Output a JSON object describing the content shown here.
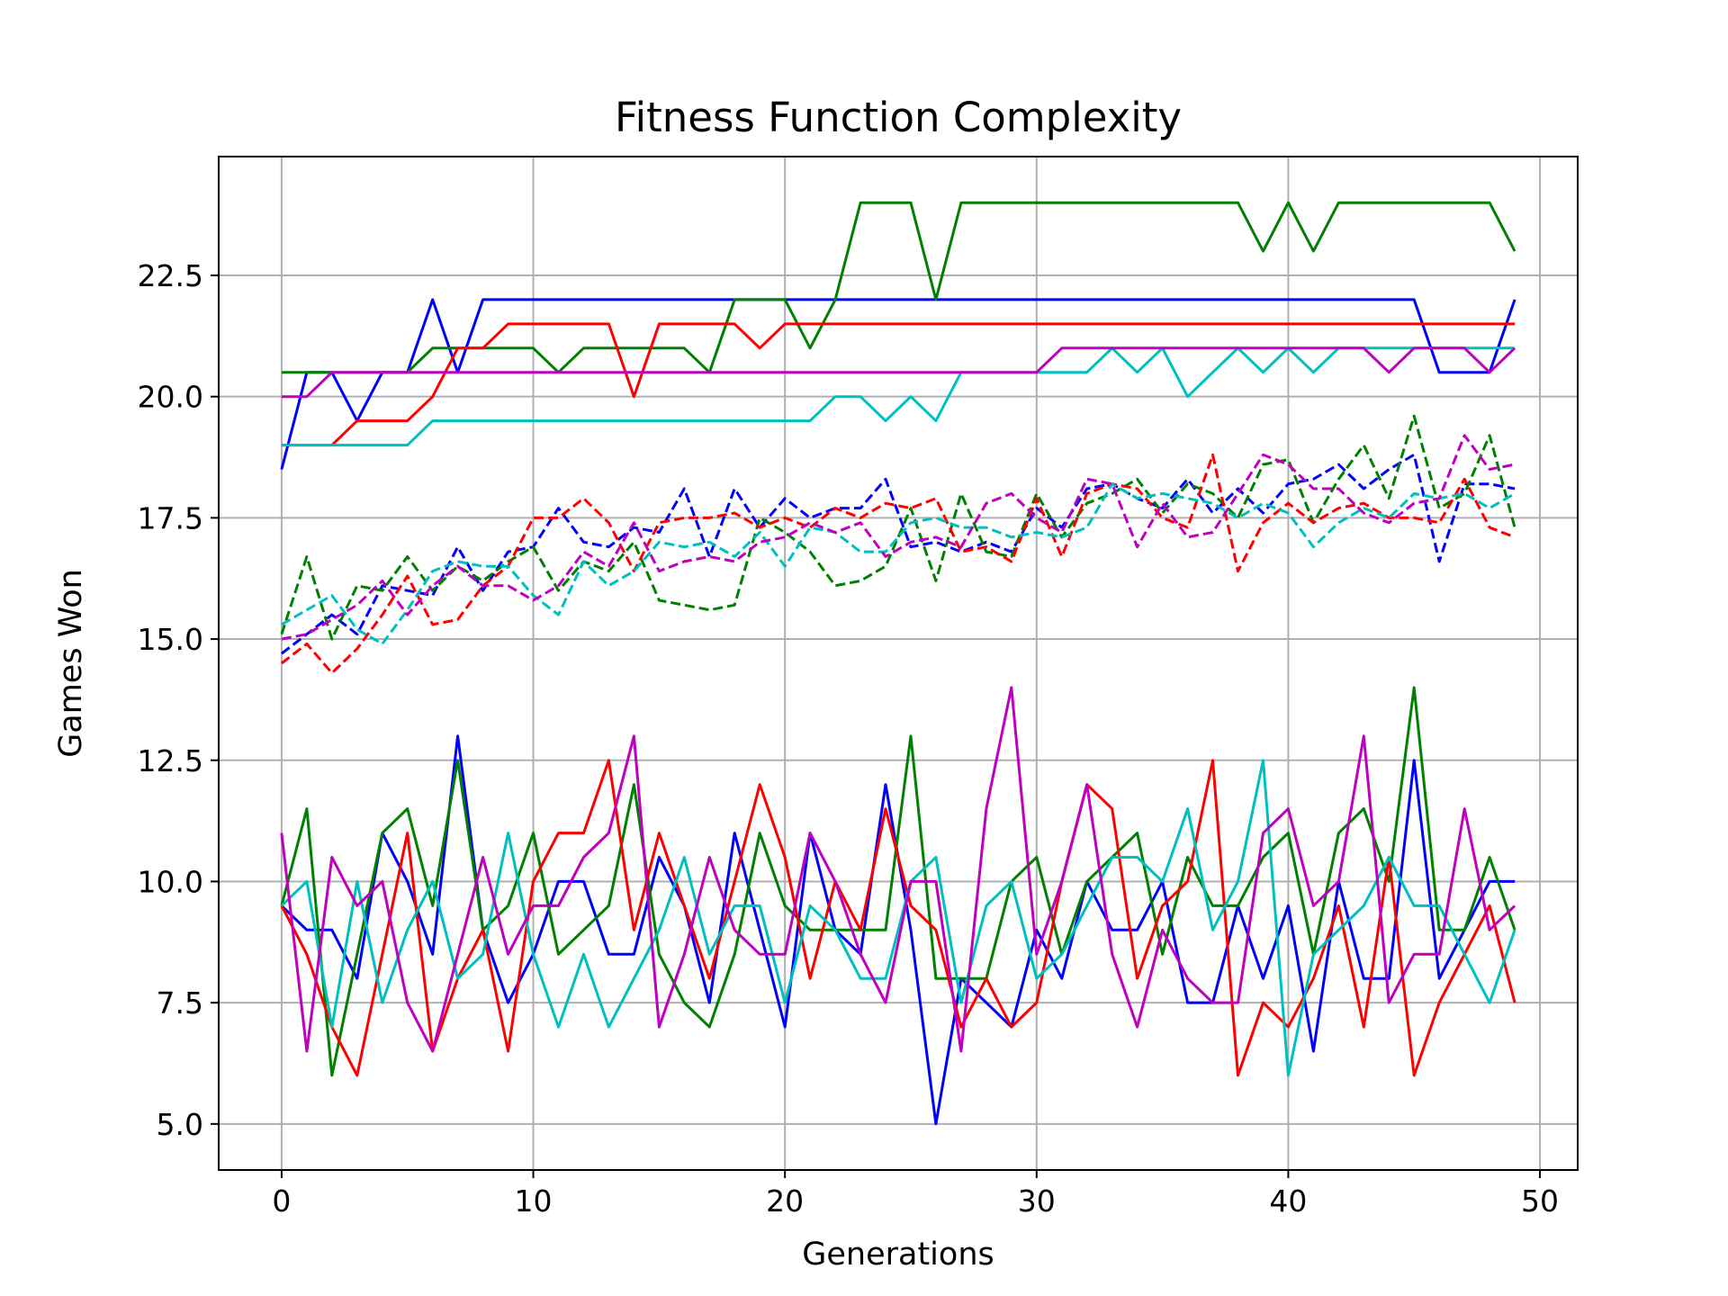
{
  "chart_data": {
    "type": "line",
    "title": "Fitness Function Complexity",
    "xlabel": "Generations",
    "ylabel": "Games Won",
    "xlim": [
      -2.5,
      51.5
    ],
    "ylim": [
      4.05,
      24.95
    ],
    "xticks": [
      0,
      10,
      20,
      30,
      40,
      50
    ],
    "xtick_labels": [
      "0",
      "10",
      "20",
      "30",
      "40",
      "50"
    ],
    "yticks": [
      5.0,
      7.5,
      10.0,
      12.5,
      15.0,
      17.5,
      20.0,
      22.5
    ],
    "ytick_labels": [
      "5.0",
      "7.5",
      "10.0",
      "12.5",
      "15.0",
      "17.5",
      "20.0",
      "22.5"
    ],
    "grid": true,
    "legend": "none",
    "x": [
      0,
      1,
      2,
      3,
      4,
      5,
      6,
      7,
      8,
      9,
      10,
      11,
      12,
      13,
      14,
      15,
      16,
      17,
      18,
      19,
      20,
      21,
      22,
      23,
      24,
      25,
      26,
      27,
      28,
      29,
      30,
      31,
      32,
      33,
      34,
      35,
      36,
      37,
      38,
      39,
      40,
      41,
      42,
      43,
      44,
      45,
      46,
      47,
      48,
      49
    ],
    "series": [
      {
        "color": "#0000ff",
        "style": "solid",
        "values": [
          18.5,
          20.5,
          20.5,
          19.5,
          20.5,
          20.5,
          22,
          20.5,
          22,
          22,
          22,
          22,
          22,
          22,
          22,
          22,
          22,
          22,
          22,
          22,
          22,
          22,
          22,
          22,
          22,
          22,
          22,
          22,
          22,
          22,
          22,
          22,
          22,
          22,
          22,
          22,
          22,
          22,
          22,
          22,
          22,
          22,
          22,
          22,
          22,
          22,
          20.5,
          20.5,
          20.5,
          22
        ]
      },
      {
        "color": "#008000",
        "style": "solid",
        "values": [
          20.5,
          20.5,
          20.5,
          20.5,
          20.5,
          20.5,
          21,
          21,
          21,
          21,
          21,
          20.5,
          21,
          21,
          21,
          21,
          21,
          20.5,
          22,
          22,
          22,
          21,
          22,
          24,
          24,
          24,
          22,
          24,
          24,
          24,
          24,
          24,
          24,
          24,
          24,
          24,
          24,
          24,
          24,
          23,
          24,
          23,
          24,
          24,
          24,
          24,
          24,
          24,
          24,
          23
        ]
      },
      {
        "color": "#ff0000",
        "style": "solid",
        "values": [
          19,
          19,
          19,
          19.5,
          19.5,
          19.5,
          20,
          21,
          21,
          21.5,
          21.5,
          21.5,
          21.5,
          21.5,
          20,
          21.5,
          21.5,
          21.5,
          21.5,
          21,
          21.5,
          21.5,
          21.5,
          21.5,
          21.5,
          21.5,
          21.5,
          21.5,
          21.5,
          21.5,
          21.5,
          21.5,
          21.5,
          21.5,
          21.5,
          21.5,
          21.5,
          21.5,
          21.5,
          21.5,
          21.5,
          21.5,
          21.5,
          21.5,
          21.5,
          21.5,
          21.5,
          21.5,
          21.5,
          21.5
        ]
      },
      {
        "color": "#00bfbf",
        "style": "solid",
        "values": [
          19,
          19,
          19,
          19,
          19,
          19,
          19.5,
          19.5,
          19.5,
          19.5,
          19.5,
          19.5,
          19.5,
          19.5,
          19.5,
          19.5,
          19.5,
          19.5,
          19.5,
          19.5,
          19.5,
          19.5,
          20,
          20,
          19.5,
          20,
          19.5,
          20.5,
          20.5,
          20.5,
          20.5,
          20.5,
          20.5,
          21,
          20.5,
          21,
          20,
          20.5,
          21,
          20.5,
          21,
          20.5,
          21,
          21,
          21,
          21,
          21,
          21,
          21,
          21
        ]
      },
      {
        "color": "#bf00bf",
        "style": "solid",
        "values": [
          20,
          20,
          20.5,
          20.5,
          20.5,
          20.5,
          20.5,
          20.5,
          20.5,
          20.5,
          20.5,
          20.5,
          20.5,
          20.5,
          20.5,
          20.5,
          20.5,
          20.5,
          20.5,
          20.5,
          20.5,
          20.5,
          20.5,
          20.5,
          20.5,
          20.5,
          20.5,
          20.5,
          20.5,
          20.5,
          20.5,
          21,
          21,
          21,
          21,
          21,
          21,
          21,
          21,
          21,
          21,
          21,
          21,
          21,
          20.5,
          21,
          21,
          21,
          20.5,
          21
        ]
      },
      {
        "color": "#0000ff",
        "style": "dashed",
        "values": [
          14.7,
          15.1,
          15.5,
          15.1,
          16.1,
          16.0,
          15.9,
          16.9,
          16.0,
          16.8,
          16.9,
          17.7,
          17.0,
          16.9,
          17.3,
          17.2,
          18.1,
          16.7,
          18.1,
          17.3,
          17.9,
          17.5,
          17.7,
          17.7,
          18.3,
          16.9,
          17.0,
          16.8,
          17.0,
          16.8,
          17.7,
          17.3,
          18.1,
          18.2,
          17.9,
          17.7,
          18.3,
          17.6,
          18.1,
          17.6,
          18.2,
          18.3,
          18.6,
          18.1,
          18.5,
          18.8,
          16.6,
          18.2,
          18.2,
          18.1
        ]
      },
      {
        "color": "#008000",
        "style": "dashed",
        "values": [
          15.1,
          16.7,
          15.0,
          16.1,
          16.0,
          16.7,
          16.0,
          16.5,
          16.2,
          16.6,
          16.9,
          16.0,
          16.6,
          16.4,
          17.0,
          15.8,
          15.7,
          15.6,
          15.7,
          17.5,
          17.2,
          16.8,
          16.1,
          16.2,
          16.5,
          17.7,
          16.2,
          18.0,
          16.8,
          16.7,
          18.0,
          17.1,
          17.8,
          18.0,
          18.3,
          17.6,
          18.2,
          18.0,
          17.5,
          18.6,
          18.7,
          17.4,
          18.3,
          19.0,
          17.9,
          19.6,
          17.7,
          18.0,
          19.2,
          17.3
        ]
      },
      {
        "color": "#ff0000",
        "style": "dashed",
        "values": [
          14.5,
          14.9,
          14.3,
          14.8,
          15.5,
          16.3,
          15.3,
          15.4,
          16.1,
          16.5,
          17.5,
          17.5,
          17.9,
          17.4,
          16.4,
          17.4,
          17.5,
          17.5,
          17.6,
          17.3,
          17.5,
          17.3,
          17.7,
          17.5,
          17.8,
          17.7,
          17.9,
          16.8,
          16.9,
          16.6,
          17.9,
          16.7,
          18.0,
          18.2,
          18.1,
          17.5,
          17.3,
          18.8,
          16.4,
          17.4,
          17.8,
          17.4,
          17.7,
          17.8,
          17.5,
          17.5,
          17.4,
          18.3,
          17.3,
          17.1
        ]
      },
      {
        "color": "#00bfbf",
        "style": "dashed",
        "values": [
          15.3,
          15.6,
          15.9,
          15.2,
          14.9,
          15.6,
          16.4,
          16.6,
          16.5,
          16.5,
          15.9,
          15.5,
          16.6,
          16.1,
          16.4,
          17.0,
          16.9,
          17.0,
          16.7,
          17.2,
          16.5,
          17.3,
          17.2,
          16.8,
          16.8,
          17.4,
          17.5,
          17.3,
          17.3,
          17.1,
          17.2,
          17.1,
          17.3,
          18.2,
          17.9,
          18.0,
          17.9,
          17.8,
          17.5,
          17.8,
          17.6,
          16.9,
          17.4,
          17.7,
          17.5,
          18.0,
          17.9,
          18.0,
          17.7,
          18.0
        ]
      },
      {
        "color": "#bf00bf",
        "style": "dashed",
        "values": [
          15.0,
          15.1,
          15.4,
          15.7,
          16.2,
          15.5,
          16.1,
          16.5,
          16.1,
          16.1,
          15.8,
          16.1,
          16.8,
          16.5,
          17.4,
          16.4,
          16.6,
          16.7,
          16.6,
          17.0,
          17.1,
          17.4,
          17.2,
          17.4,
          16.7,
          17.0,
          17.1,
          16.9,
          17.8,
          18.0,
          17.5,
          17.2,
          18.3,
          18.2,
          16.9,
          17.8,
          17.1,
          17.2,
          18.0,
          18.8,
          18.6,
          18.1,
          18.1,
          17.6,
          17.4,
          17.8,
          17.9,
          19.2,
          18.5,
          18.6
        ]
      },
      {
        "color": "#0000ff",
        "style": "solid",
        "values": [
          9.5,
          9,
          9,
          8,
          11,
          10,
          8.5,
          13,
          9,
          7.5,
          8.5,
          10,
          10,
          8.5,
          8.5,
          10.5,
          9.5,
          7.5,
          11,
          9,
          7,
          11,
          9,
          8.5,
          12,
          9,
          5,
          8,
          7.5,
          7,
          9,
          8,
          10,
          9,
          9,
          10,
          7.5,
          7.5,
          9.5,
          8,
          9.5,
          6.5,
          10,
          8,
          8,
          12.5,
          8,
          9,
          10,
          10
        ]
      },
      {
        "color": "#008000",
        "style": "solid",
        "values": [
          9.5,
          11.5,
          6,
          8.5,
          11,
          11.5,
          9.5,
          12.5,
          9,
          9.5,
          11,
          8.5,
          9,
          9.5,
          12,
          8.5,
          7.5,
          7,
          8.5,
          11,
          9.5,
          9,
          9,
          9,
          9,
          13,
          8,
          8,
          8,
          10,
          10.5,
          8.5,
          10,
          10.5,
          11,
          8.5,
          10.5,
          9.5,
          9.5,
          10.5,
          11,
          8.5,
          11,
          11.5,
          10,
          14,
          9,
          9,
          10.5,
          9
        ]
      },
      {
        "color": "#ff0000",
        "style": "solid",
        "values": [
          9.5,
          8.5,
          7,
          6,
          8.5,
          11,
          6.5,
          8,
          9,
          6.5,
          10,
          11,
          11,
          12.5,
          9,
          11,
          9.5,
          8,
          10,
          12,
          10.5,
          8,
          10,
          9,
          11.5,
          9.5,
          9,
          7,
          8,
          7,
          7.5,
          10,
          12,
          11.5,
          8,
          9.5,
          10,
          12.5,
          6,
          7.5,
          7,
          8,
          9.5,
          7,
          10.5,
          6,
          7.5,
          8.5,
          9.5,
          7.5
        ]
      },
      {
        "color": "#00bfbf",
        "style": "solid",
        "values": [
          9.5,
          10,
          7,
          10,
          7.5,
          9,
          10,
          8,
          8.5,
          11,
          8.5,
          7,
          8.5,
          7,
          8,
          9,
          10.5,
          8.5,
          9.5,
          9.5,
          7.5,
          9.5,
          9,
          8,
          8,
          10,
          10.5,
          7.5,
          9.5,
          10,
          8,
          8.5,
          9.5,
          10.5,
          10.5,
          10,
          11.5,
          9,
          10,
          12.5,
          6,
          8.5,
          9,
          9.5,
          10.5,
          9.5,
          9.5,
          8.5,
          7.5,
          9
        ]
      },
      {
        "color": "#bf00bf",
        "style": "solid",
        "values": [
          11,
          6.5,
          10.5,
          9.5,
          10,
          7.5,
          6.5,
          8.5,
          10.5,
          8.5,
          9.5,
          9.5,
          10.5,
          11,
          13,
          7,
          8.5,
          10.5,
          9,
          8.5,
          8.5,
          11,
          10,
          8.5,
          7.5,
          10,
          10,
          6.5,
          11.5,
          14,
          8.5,
          10,
          12,
          8.5,
          7,
          9,
          8,
          7.5,
          7.5,
          11,
          11.5,
          9.5,
          10,
          13,
          7.5,
          8.5,
          8.5,
          11.5,
          9,
          9.5
        ]
      }
    ]
  }
}
